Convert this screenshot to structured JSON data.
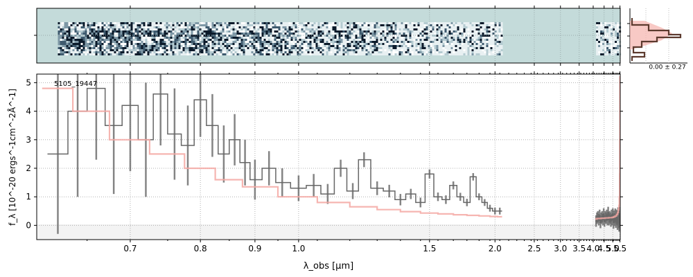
{
  "figure": {
    "label": "5105_19447",
    "spectrum_2d": {
      "background_color": "#c4dbda",
      "pixel_colors": [
        "#0b1a2a",
        "#3e5a6e",
        "#7e98a6",
        "#b5cbd1",
        "#e8f0f2",
        "#ffffff"
      ]
    },
    "profile": {
      "annotation": "0.00 ± 0.27",
      "model_color": "#f5b7b1",
      "data_color": "#5c3a2e"
    }
  },
  "chart_data": {
    "type": "line",
    "title": "",
    "xlabel": "λ_obs [μm]",
    "ylabel": "f_λ [10^-20 ergs^-1cm^-2Å^-1]",
    "xscale": "reciprocal",
    "xlim": [
      0.6,
      5.52
    ],
    "ylim": [
      -0.5,
      5.3
    ],
    "xticks": [
      {
        "value": 0.7,
        "label": "0.7"
      },
      {
        "value": 0.8,
        "label": "0.8"
      },
      {
        "value": 0.9,
        "label": "0.9"
      },
      {
        "value": 1.0,
        "label": "1.0"
      },
      {
        "value": 1.5,
        "label": "1.5"
      },
      {
        "value": 2.0,
        "label": "2.0"
      },
      {
        "value": 2.5,
        "label": "2.5"
      },
      {
        "value": 3.0,
        "label": "3.0"
      },
      {
        "value": 3.5,
        "label": "3.5"
      },
      {
        "value": 4.0,
        "label": "4.0"
      },
      {
        "value": 4.5,
        "label": "4.5"
      },
      {
        "value": 5.0,
        "label": "5.0"
      },
      {
        "value": 5.5,
        "label": "5.5"
      }
    ],
    "yticks": [
      0,
      1,
      2,
      3,
      4,
      5
    ],
    "grid": true,
    "series": [
      {
        "color": "#666666",
        "style": "errorbar",
        "x": [
          0.62,
          0.64,
          0.66,
          0.68,
          0.7,
          0.72,
          0.74,
          0.76,
          0.78,
          0.8,
          0.82,
          0.84,
          0.86,
          0.88,
          0.9,
          0.93,
          0.96,
          1.0,
          1.04,
          1.08,
          1.12,
          1.16,
          1.2,
          1.25,
          1.3,
          1.35,
          1.4,
          1.45,
          1.5,
          1.55,
          1.6,
          1.65,
          1.7,
          1.75,
          1.8,
          1.85,
          1.9,
          1.95,
          2.0,
          2.05
        ],
        "y": [
          2.5,
          4.0,
          4.8,
          3.5,
          4.2,
          3.0,
          4.6,
          3.2,
          2.8,
          4.4,
          3.5,
          2.5,
          3.0,
          2.2,
          1.6,
          2.0,
          1.5,
          1.3,
          1.4,
          1.1,
          2.0,
          1.2,
          2.3,
          1.3,
          1.2,
          0.9,
          1.1,
          0.8,
          1.8,
          1.0,
          0.9,
          1.4,
          1.0,
          0.8,
          1.7,
          1.0,
          0.8,
          0.6,
          0.5,
          0.5
        ],
        "err": [
          2.8,
          3.0,
          2.5,
          2.4,
          2.3,
          2.0,
          1.8,
          1.6,
          1.4,
          1.3,
          1.1,
          1.0,
          0.9,
          0.8,
          0.7,
          0.6,
          0.5,
          0.45,
          0.4,
          0.35,
          0.3,
          0.28,
          0.26,
          0.24,
          0.22,
          0.2,
          0.18,
          0.17,
          0.16,
          0.15,
          0.15,
          0.14,
          0.14,
          0.13,
          0.13,
          0.12,
          0.12,
          0.12,
          0.12,
          0.12
        ]
      },
      {
        "color": "#666666",
        "style": "errorbar",
        "x": [
          4.12,
          4.16,
          4.2,
          4.24,
          4.28,
          4.32,
          4.36,
          4.4,
          4.44,
          4.48,
          4.52,
          4.56,
          4.6,
          4.64,
          4.68,
          4.72,
          4.76,
          4.8,
          4.84,
          4.88,
          4.92,
          4.96,
          5.0,
          5.04,
          5.08,
          5.12,
          5.16,
          5.2,
          5.24,
          5.28,
          5.32,
          5.36,
          5.4,
          5.44,
          5.48
        ],
        "y": [
          0.15,
          0.25,
          0.3,
          0.2,
          0.35,
          0.1,
          0.25,
          0.3,
          0.2,
          0.4,
          0.15,
          0.3,
          0.25,
          0.35,
          0.2,
          0.45,
          0.2,
          0.3,
          0.25,
          0.15,
          0.35,
          0.2,
          0.4,
          0.1,
          0.3,
          0.2,
          0.35,
          0.15,
          0.3,
          0.25,
          0.1,
          0.35,
          0.2,
          0.1,
          0.3
        ],
        "err": [
          0.2,
          0.2,
          0.2,
          0.2,
          0.2,
          0.2,
          0.2,
          0.2,
          0.2,
          0.2,
          0.2,
          0.2,
          0.2,
          0.2,
          0.2,
          0.2,
          0.2,
          0.2,
          0.2,
          0.2,
          0.2,
          0.2,
          0.2,
          0.22,
          0.22,
          0.22,
          0.24,
          0.24,
          0.25,
          0.25,
          0.26,
          0.28,
          0.3,
          0.32,
          0.35
        ]
      },
      {
        "color": "#f5a8a3",
        "style": "model",
        "x": [
          0.62,
          0.65,
          0.7,
          0.75,
          0.8,
          0.85,
          0.9,
          1.0,
          1.1,
          1.2,
          1.3,
          1.4,
          1.5,
          1.6,
          1.7,
          1.8,
          1.9,
          2.0,
          2.05
        ],
        "y": [
          4.8,
          4.0,
          3.0,
          2.5,
          2.0,
          1.6,
          1.35,
          1.0,
          0.8,
          0.65,
          0.55,
          0.48,
          0.43,
          0.4,
          0.37,
          0.35,
          0.33,
          0.31,
          0.3
        ]
      },
      {
        "color": "#f5a8a3",
        "style": "model",
        "x": [
          4.12,
          4.2,
          4.3,
          4.4,
          4.5,
          4.6,
          4.7,
          4.8,
          4.9,
          5.0,
          5.1,
          5.2,
          5.3,
          5.35,
          5.4,
          5.43,
          5.46,
          5.48,
          5.49,
          5.5
        ],
        "y": [
          0.22,
          0.24,
          0.24,
          0.25,
          0.25,
          0.26,
          0.26,
          0.27,
          0.27,
          0.28,
          0.3,
          0.33,
          0.38,
          0.45,
          0.55,
          0.7,
          1.0,
          1.8,
          3.0,
          5.2
        ]
      }
    ]
  }
}
